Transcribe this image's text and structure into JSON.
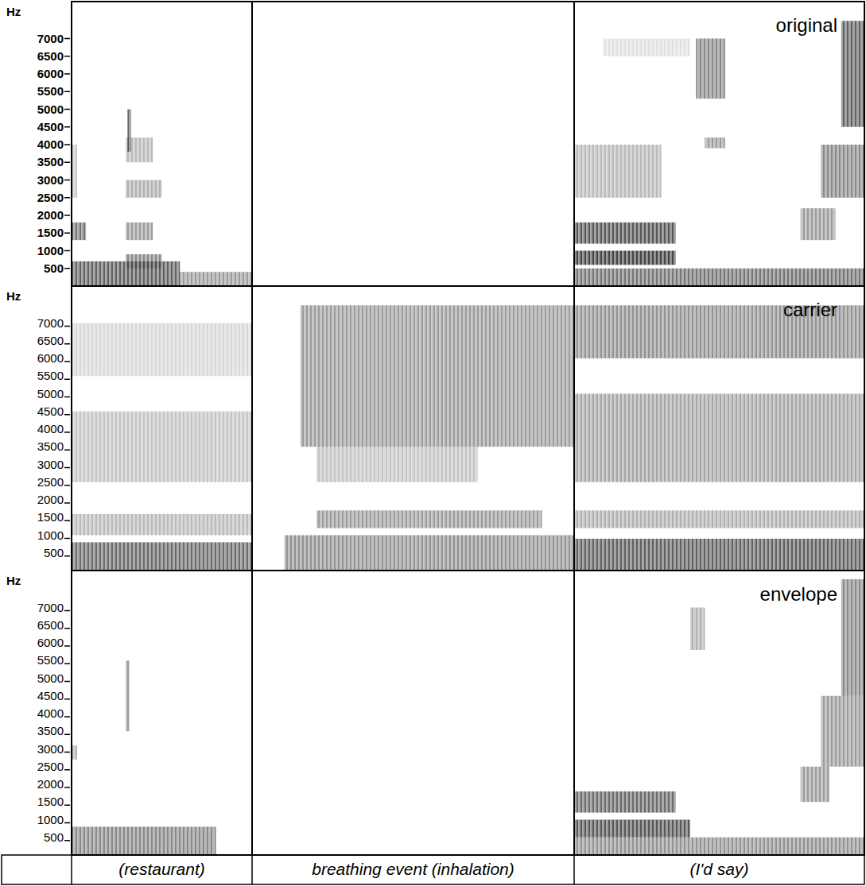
{
  "chart_data": [
    {
      "type": "heatmap",
      "title": "original",
      "ylabel": "Hz",
      "ylim": [
        0,
        8000
      ],
      "yticks": [
        500,
        1000,
        1500,
        2000,
        2500,
        3000,
        3500,
        4000,
        4500,
        5000,
        5500,
        6000,
        6500,
        7000
      ],
      "bands": [
        {
          "segment": 0,
          "t": [
            0,
            0.6
          ],
          "f": [
            0,
            700
          ],
          "level": 0.8
        },
        {
          "segment": 0,
          "t": [
            0.6,
            1
          ],
          "f": [
            0,
            400
          ],
          "level": 0.5
        },
        {
          "segment": 0,
          "t": [
            0,
            0.08
          ],
          "f": [
            1300,
            1800
          ],
          "level": 0.7
        },
        {
          "segment": 0,
          "t": [
            0.3,
            0.45
          ],
          "f": [
            1300,
            1800
          ],
          "level": 0.5
        },
        {
          "segment": 0,
          "t": [
            0.3,
            0.5
          ],
          "f": [
            500,
            900
          ],
          "level": 0.6
        },
        {
          "segment": 0,
          "t": [
            0.3,
            0.5
          ],
          "f": [
            2500,
            3000
          ],
          "level": 0.4
        },
        {
          "segment": 0,
          "t": [
            0.3,
            0.45
          ],
          "f": [
            3500,
            4200
          ],
          "level": 0.35
        },
        {
          "segment": 0,
          "t": [
            0.31,
            0.33
          ],
          "f": [
            3800,
            5000
          ],
          "level": 0.8
        },
        {
          "segment": 0,
          "t": [
            0,
            0.03
          ],
          "f": [
            2500,
            4000
          ],
          "level": 0.3
        },
        {
          "segment": 2,
          "t": [
            0,
            0.35
          ],
          "f": [
            600,
            1000
          ],
          "level": 0.95
        },
        {
          "segment": 2,
          "t": [
            0,
            0.35
          ],
          "f": [
            1200,
            1800
          ],
          "level": 0.85
        },
        {
          "segment": 2,
          "t": [
            0,
            1
          ],
          "f": [
            0,
            500
          ],
          "level": 0.7
        },
        {
          "segment": 2,
          "t": [
            0,
            0.3
          ],
          "f": [
            2500,
            4000
          ],
          "level": 0.35
        },
        {
          "segment": 2,
          "t": [
            0.45,
            0.52
          ],
          "f": [
            3900,
            4200
          ],
          "level": 0.5
        },
        {
          "segment": 2,
          "t": [
            0.42,
            0.52
          ],
          "f": [
            5300,
            7000
          ],
          "level": 0.6
        },
        {
          "segment": 2,
          "t": [
            0.78,
            0.9
          ],
          "f": [
            1300,
            2200
          ],
          "level": 0.5
        },
        {
          "segment": 2,
          "t": [
            0.85,
            1
          ],
          "f": [
            2500,
            4000
          ],
          "level": 0.6
        },
        {
          "segment": 2,
          "t": [
            0.92,
            1
          ],
          "f": [
            4500,
            7500
          ],
          "level": 0.8
        },
        {
          "segment": 2,
          "t": [
            0.1,
            0.4
          ],
          "f": [
            6500,
            7000
          ],
          "level": 0.15
        }
      ]
    },
    {
      "type": "heatmap",
      "title": "carrier",
      "ylabel": "Hz",
      "ylim": [
        0,
        8000
      ],
      "yticks": [
        500,
        1000,
        1500,
        2000,
        2500,
        3000,
        3500,
        4000,
        4500,
        5000,
        5500,
        6000,
        6500,
        7000
      ],
      "bands": [
        {
          "segment": 0,
          "t": [
            0,
            1
          ],
          "f": [
            0,
            800
          ],
          "level": 0.75
        },
        {
          "segment": 0,
          "t": [
            0,
            1
          ],
          "f": [
            1000,
            1600
          ],
          "level": 0.35
        },
        {
          "segment": 0,
          "t": [
            0,
            1
          ],
          "f": [
            2500,
            4500
          ],
          "level": 0.3
        },
        {
          "segment": 0,
          "t": [
            0,
            1
          ],
          "f": [
            5500,
            7000
          ],
          "level": 0.2
        },
        {
          "segment": 1,
          "t": [
            0.1,
            1
          ],
          "f": [
            0,
            1000
          ],
          "level": 0.55
        },
        {
          "segment": 1,
          "t": [
            0.2,
            0.9
          ],
          "f": [
            1200,
            1700
          ],
          "level": 0.5
        },
        {
          "segment": 1,
          "t": [
            0.2,
            0.7
          ],
          "f": [
            2500,
            3500
          ],
          "level": 0.3
        },
        {
          "segment": 1,
          "t": [
            0.15,
            1
          ],
          "f": [
            3500,
            7500
          ],
          "level": 0.5
        },
        {
          "segment": 2,
          "t": [
            0,
            1
          ],
          "f": [
            0,
            900
          ],
          "level": 0.8
        },
        {
          "segment": 2,
          "t": [
            0,
            1
          ],
          "f": [
            1200,
            1700
          ],
          "level": 0.4
        },
        {
          "segment": 2,
          "t": [
            0,
            1
          ],
          "f": [
            2500,
            5000
          ],
          "level": 0.45
        },
        {
          "segment": 2,
          "t": [
            0,
            1
          ],
          "f": [
            6000,
            7500
          ],
          "level": 0.55
        }
      ]
    },
    {
      "type": "heatmap",
      "title": "envelope",
      "ylabel": "Hz",
      "ylim": [
        0,
        8000
      ],
      "yticks": [
        500,
        1000,
        1500,
        2000,
        2500,
        3000,
        3500,
        4000,
        4500,
        5000,
        5500,
        6000,
        6500,
        7000
      ],
      "categories": [
        "(restaurant)",
        "breathing event (inhalation)",
        "(I'd say)"
      ],
      "bands": [
        {
          "segment": 0,
          "t": [
            0,
            0.8
          ],
          "f": [
            0,
            800
          ],
          "level": 0.6
        },
        {
          "segment": 0,
          "t": [
            0.3,
            0.32
          ],
          "f": [
            3500,
            5500
          ],
          "level": 0.5
        },
        {
          "segment": 0,
          "t": [
            0,
            0.03
          ],
          "f": [
            2700,
            3100
          ],
          "level": 0.4
        },
        {
          "segment": 2,
          "t": [
            0,
            0.4
          ],
          "f": [
            500,
            1000
          ],
          "level": 0.85
        },
        {
          "segment": 2,
          "t": [
            0,
            0.35
          ],
          "f": [
            1200,
            1800
          ],
          "level": 0.75
        },
        {
          "segment": 2,
          "t": [
            0,
            1
          ],
          "f": [
            0,
            500
          ],
          "level": 0.55
        },
        {
          "segment": 2,
          "t": [
            0.78,
            0.88
          ],
          "f": [
            1500,
            2500
          ],
          "level": 0.5
        },
        {
          "segment": 2,
          "t": [
            0.85,
            1
          ],
          "f": [
            2500,
            4500
          ],
          "level": 0.5
        },
        {
          "segment": 2,
          "t": [
            0.92,
            1
          ],
          "f": [
            4500,
            7800
          ],
          "level": 0.6
        },
        {
          "segment": 2,
          "t": [
            0.4,
            0.45
          ],
          "f": [
            5800,
            7000
          ],
          "level": 0.4
        }
      ]
    }
  ]
}
